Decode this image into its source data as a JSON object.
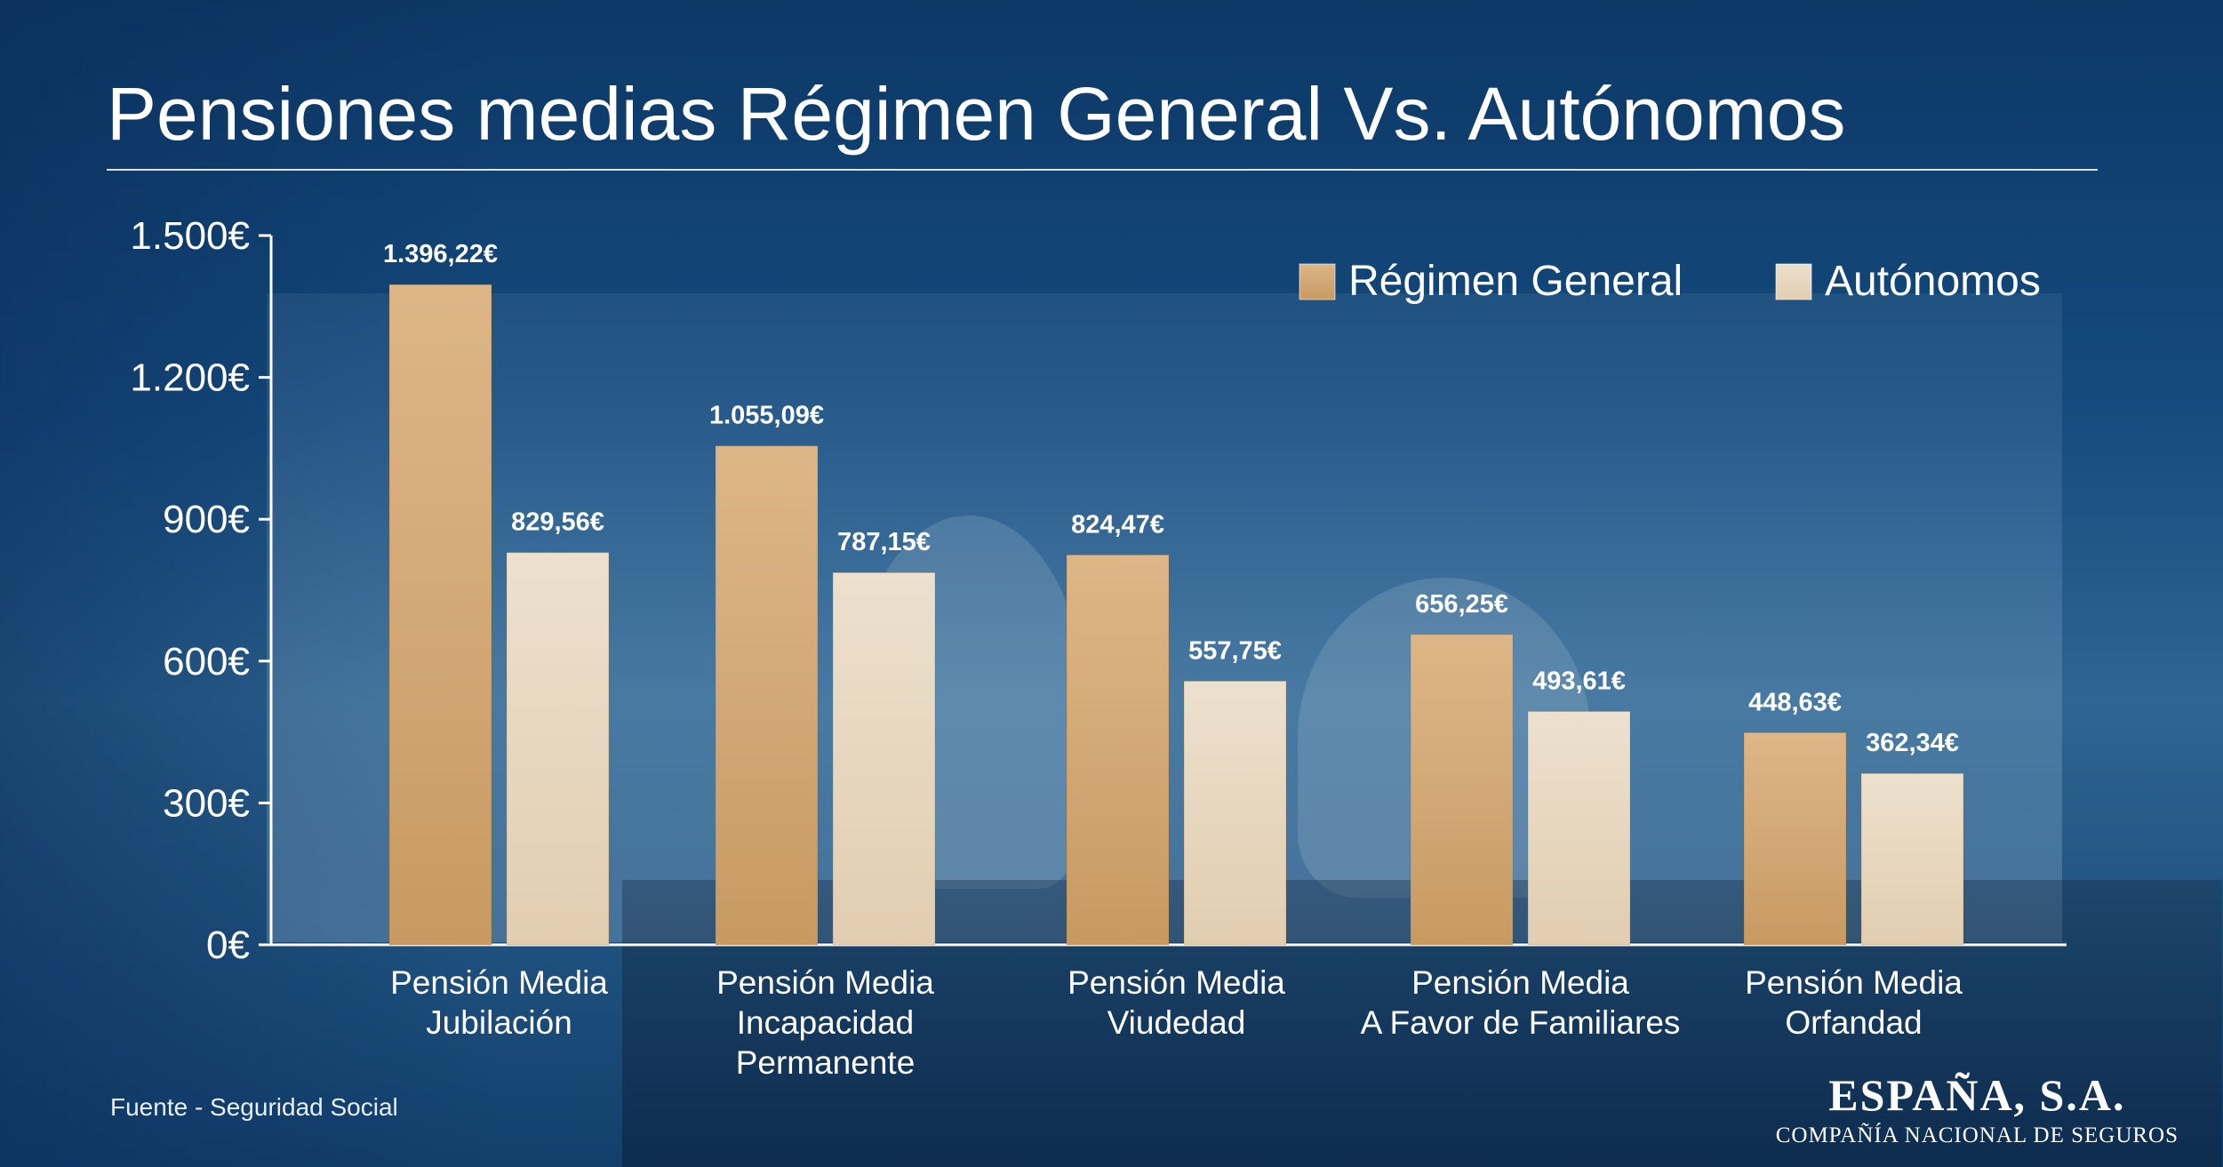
{
  "title": "Pensiones medias Régimen General Vs. Autónomos",
  "source": "Fuente - Seguridad Social",
  "logo": {
    "name": "ESPAÑA, S.A.",
    "tagline": "COMPAÑÍA NACIONAL DE SEGUROS"
  },
  "colors": {
    "general": "#d2a773",
    "autonomos": "#e6d3b8",
    "text": "#ffffff"
  },
  "chart_data": {
    "type": "bar",
    "title": "Pensiones medias Régimen General Vs. Autónomos",
    "categories": [
      [
        "Pensión Media",
        "Jubilación"
      ],
      [
        "Pensión Media",
        "Incapacidad",
        "Permanente"
      ],
      [
        "Pensión Media",
        "Viudedad"
      ],
      [
        "Pensión Media",
        "A Favor de Familiares"
      ],
      [
        "Pensión Media",
        "Orfandad"
      ]
    ],
    "series": [
      {
        "name": "Régimen General",
        "values": [
          1396.22,
          1055.09,
          824.47,
          656.25,
          448.63
        ],
        "labels": [
          "1.396,22€",
          "1.055,09€",
          "824,47€",
          "656,25€",
          "448,63€"
        ]
      },
      {
        "name": "Autónomos",
        "values": [
          829.56,
          787.15,
          557.75,
          493.61,
          362.34
        ],
        "labels": [
          "829,56€",
          "787,15€",
          "557,75€",
          "493,61€",
          "362,34€"
        ]
      }
    ],
    "ylim": [
      0,
      1500
    ],
    "yticks": [
      0,
      300,
      600,
      900,
      1200,
      1500
    ],
    "ytick_labels": [
      "0€",
      "300€",
      "600€",
      "900€",
      "1.200€",
      "1.500€"
    ],
    "legend_position": "top-right",
    "grid": false
  }
}
